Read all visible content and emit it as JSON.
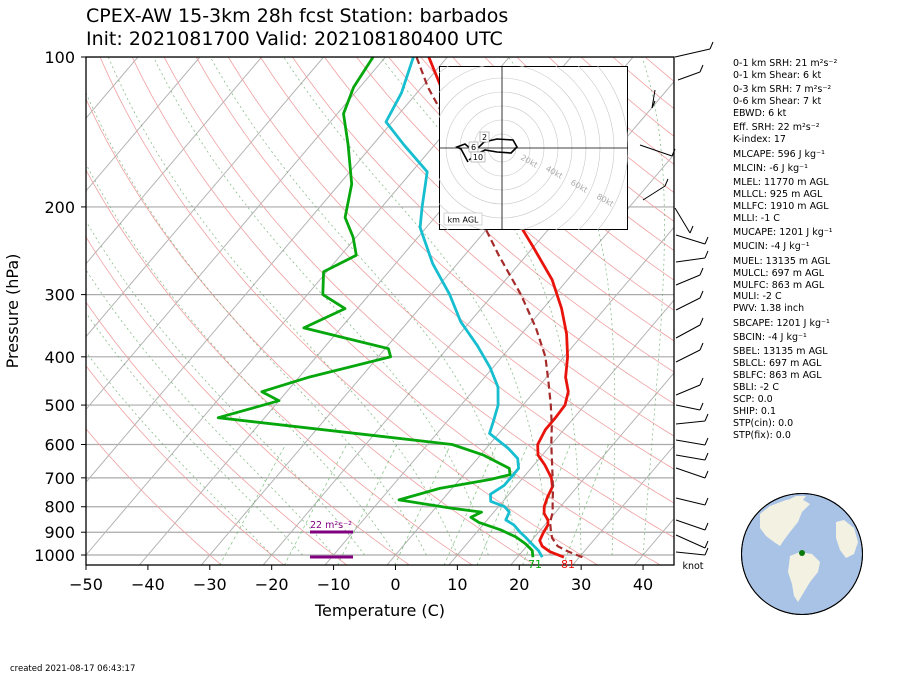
{
  "header": {
    "title_line1": "CPEX-AW 15-3km  28h fcst  Station: barbados",
    "title_line2": "Init: 2021081700  Valid: 202108180400 UTC"
  },
  "footer": {
    "created": "created 2021-08-17 06:43:17"
  },
  "chart_data": {
    "type": "line",
    "subtype": "skew-t log-p",
    "xlabel": "Temperature (C)",
    "ylabel": "Pressure (hPa)",
    "xlim": [
      -50,
      45
    ],
    "ylim": [
      1050,
      100
    ],
    "x_ticks": [
      -50,
      -40,
      -30,
      -20,
      -10,
      0,
      10,
      20,
      30,
      40
    ],
    "y_ticks": [
      100,
      200,
      300,
      400,
      500,
      600,
      700,
      800,
      900,
      1000
    ],
    "y_scale": "log",
    "skew": "isotherms lean right",
    "series": [
      {
        "key": "temperature",
        "color": "#e8140c",
        "points": [
          [
            1010,
            27.5
          ],
          [
            985,
            24.5
          ],
          [
            960,
            22.5
          ],
          [
            935,
            21.3
          ],
          [
            900,
            20.8
          ],
          [
            870,
            20.5
          ],
          [
            850,
            19.8
          ],
          [
            825,
            18.3
          ],
          [
            800,
            17.4
          ],
          [
            765,
            16.6
          ],
          [
            730,
            16.0
          ],
          [
            700,
            14.6
          ],
          [
            660,
            11.8
          ],
          [
            630,
            9.3
          ],
          [
            600,
            7.8
          ],
          [
            560,
            7.0
          ],
          [
            530,
            7.0
          ],
          [
            500,
            6.8
          ],
          [
            470,
            5.5
          ],
          [
            440,
            3.1
          ],
          [
            400,
            0.6
          ],
          [
            360,
            -2.7
          ],
          [
            320,
            -7.0
          ],
          [
            280,
            -12.5
          ],
          [
            240,
            -20.2
          ],
          [
            200,
            -29.5
          ],
          [
            170,
            -37.0
          ],
          [
            160,
            -39.5
          ],
          [
            150,
            -43.0
          ],
          [
            135,
            -48.5
          ],
          [
            120,
            -55.0
          ],
          [
            100,
            -63.0
          ]
        ]
      },
      {
        "key": "dewpoint",
        "color": "#06a70c",
        "points": [
          [
            1010,
            22.5
          ],
          [
            980,
            21.5
          ],
          [
            950,
            19.5
          ],
          [
            920,
            17.0
          ],
          [
            890,
            13.5
          ],
          [
            860,
            9.0
          ],
          [
            840,
            7.0
          ],
          [
            820,
            8.0
          ],
          [
            805,
            2.5
          ],
          [
            775,
            -7.0
          ],
          [
            735,
            -2.0
          ],
          [
            705,
            5.0
          ],
          [
            690,
            7.5
          ],
          [
            670,
            6.5
          ],
          [
            630,
            0.5
          ],
          [
            600,
            -6.0
          ],
          [
            530,
            -47.5
          ],
          [
            490,
            -40.0
          ],
          [
            470,
            -44.0
          ],
          [
            440,
            -38.5
          ],
          [
            400,
            -28.0
          ],
          [
            385,
            -29.5
          ],
          [
            350,
            -46.0
          ],
          [
            320,
            -42.0
          ],
          [
            300,
            -47.5
          ],
          [
            270,
            -50.5
          ],
          [
            250,
            -47.5
          ],
          [
            230,
            -50.5
          ],
          [
            210,
            -54.5
          ],
          [
            180,
            -58.0
          ],
          [
            150,
            -64.0
          ],
          [
            130,
            -69.0
          ],
          [
            115,
            -71.0
          ],
          [
            100,
            -72.0
          ]
        ]
      },
      {
        "key": "wetbulb",
        "color": "#17becf",
        "points": [
          [
            1010,
            24.0
          ],
          [
            980,
            22.5
          ],
          [
            950,
            20.5
          ],
          [
            920,
            18.5
          ],
          [
            900,
            17.0
          ],
          [
            870,
            15.0
          ],
          [
            850,
            13.0
          ],
          [
            820,
            12.5
          ],
          [
            800,
            11.0
          ],
          [
            780,
            8.0
          ],
          [
            755,
            7.0
          ],
          [
            725,
            8.0
          ],
          [
            700,
            8.0
          ],
          [
            670,
            8.0
          ],
          [
            640,
            6.5
          ],
          [
            610,
            3.5
          ],
          [
            570,
            -1.5
          ],
          [
            540,
            -2.5
          ],
          [
            500,
            -4.0
          ],
          [
            460,
            -6.5
          ],
          [
            420,
            -10.5
          ],
          [
            380,
            -15.5
          ],
          [
            340,
            -21.5
          ],
          [
            300,
            -27.0
          ],
          [
            260,
            -34.0
          ],
          [
            220,
            -41.0
          ],
          [
            200,
            -43.5
          ],
          [
            170,
            -47.5
          ],
          [
            150,
            -55.0
          ],
          [
            135,
            -61.0
          ],
          [
            118,
            -62.5
          ],
          [
            100,
            -65.5
          ]
        ]
      },
      {
        "key": "parcel",
        "color": "#a52a2a",
        "dashed": true,
        "points": [
          [
            1010,
            30.5
          ],
          [
            985,
            27.5
          ],
          [
            960,
            25.0
          ],
          [
            925,
            23.0
          ],
          [
            900,
            22.0
          ],
          [
            860,
            20.5
          ],
          [
            820,
            19.5
          ],
          [
            780,
            18.0
          ],
          [
            740,
            16.5
          ],
          [
            700,
            14.8
          ],
          [
            650,
            12.5
          ],
          [
            600,
            10.0
          ],
          [
            550,
            7.5
          ],
          [
            500,
            4.5
          ],
          [
            450,
            1.0
          ],
          [
            400,
            -3.0
          ],
          [
            350,
            -8.5
          ],
          [
            300,
            -15.5
          ],
          [
            250,
            -24.5
          ],
          [
            200,
            -35.0
          ],
          [
            160,
            -44.0
          ],
          [
            130,
            -53.0
          ],
          [
            115,
            -59.0
          ],
          [
            100,
            -65.0
          ]
        ]
      }
    ],
    "surface_labels": {
      "temperature": "81",
      "dewpoint": "71"
    },
    "srh_label": "22 m²s⁻²",
    "barbs_unit": "knot",
    "hodograph": {
      "axis_label": "km AGL",
      "ring_labels": [
        "20kt",
        "40kt",
        "60kt",
        "80kt"
      ],
      "height_markers": [
        "2",
        "6",
        "10"
      ]
    },
    "indices": [
      "0-1 km SRH: 21 m²s⁻²",
      "0-1 km Shear: 6 kt",
      "0-3 km SRH: 7 m²s⁻²",
      "0-6 km Shear: 7 kt",
      "EBWD: 6 kt",
      "Eff. SRH: 22 m²s⁻²",
      "K-index: 17",
      "MLCAPE: 596 J kg⁻¹",
      "MLCIN: -6 J kg⁻¹",
      "MLEL: 11770 m AGL",
      "MLLCL: 925 m AGL",
      "MLLFC: 1910 m AGL",
      "MLLI: -1 C",
      "MUCAPE: 1201 J kg⁻¹",
      "MUCIN: -4 J kg⁻¹",
      "MUEL: 13135 m AGL",
      "MULCL: 697 m AGL",
      "MULFC: 863 m AGL",
      "MULI: -2 C",
      "PWV: 1.38 inch",
      "SBCAPE: 1201 J kg⁻¹",
      "SBCIN: -4 J kg⁻¹",
      "SBEL: 13135 m AGL",
      "SBLCL: 697 m AGL",
      "SBLFC: 863 m AGL",
      "SBLI: -2 C",
      "SCP: 0.0",
      "SHIP: 0.1",
      "STP(cin): 0.0",
      "STP(fix): 0.0"
    ]
  },
  "colors": {
    "temperature": "#e8140c",
    "dewpoint": "#06a70c",
    "wetbulb": "#17becf",
    "parcel": "#a52a2a",
    "srh": "#800080",
    "globe_ocean": "#a9c3e6",
    "globe_land": "#f3f1e2"
  }
}
